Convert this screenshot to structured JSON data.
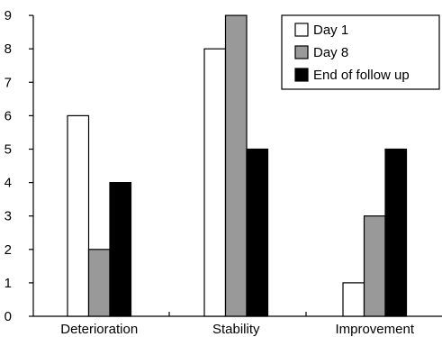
{
  "chart_data": {
    "type": "bar",
    "title": "",
    "xlabel": "",
    "ylabel": "",
    "categories": [
      "Deterioration",
      "Stability",
      "Improvement"
    ],
    "series": [
      {
        "name": "Day 1",
        "values": [
          6,
          8,
          1
        ],
        "color": "#ffffff"
      },
      {
        "name": "Day 8",
        "values": [
          2,
          9,
          3
        ],
        "color": "#999999"
      },
      {
        "name": "End of follow up",
        "values": [
          4,
          5,
          5
        ],
        "color": "#000000"
      }
    ],
    "ylim": [
      0,
      9
    ],
    "yticks": [
      0,
      1,
      2,
      3,
      4,
      5,
      6,
      7,
      8,
      9
    ],
    "grid": false,
    "legend_position": "top-right"
  }
}
